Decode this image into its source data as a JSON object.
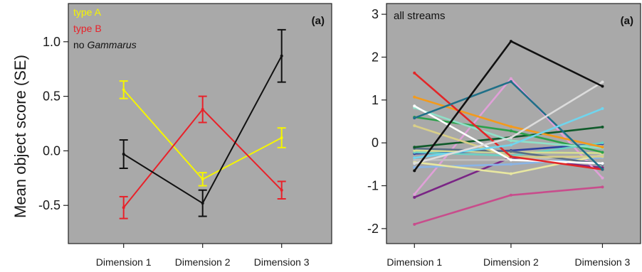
{
  "ylabel": "Mean object score (SE)",
  "chart_data": [
    {
      "type": "line",
      "panel_label": "(a)",
      "categories": [
        "Dimension 1",
        "Dimension 2",
        "Dimension 3"
      ],
      "ylim": [
        -0.85,
        1.35
      ],
      "yticks": [
        {
          "v": 1.0,
          "label": "1.0"
        },
        {
          "v": 0.5,
          "label": "0.5"
        },
        {
          "v": 0.0,
          "label": "0.0"
        },
        {
          "v": -0.5,
          "label": "-0.5"
        }
      ],
      "background": "#a9a9a9",
      "grid": false,
      "legend": [
        {
          "text": "type A",
          "color": "#f5f500"
        },
        {
          "text": "type B",
          "color": "#e8222a"
        },
        {
          "text": "no ",
          "italic": "Gammarus",
          "color": "#111111"
        }
      ],
      "series": [
        {
          "name": "type A",
          "color": "#f5f500",
          "values": [
            0.56,
            -0.26,
            0.12
          ],
          "se": [
            0.08,
            0.06,
            0.09
          ]
        },
        {
          "name": "type B",
          "color": "#e8222a",
          "values": [
            -0.52,
            0.38,
            -0.36
          ],
          "se": [
            0.1,
            0.12,
            0.08
          ]
        },
        {
          "name": "no Gammarus",
          "color": "#111111",
          "values": [
            -0.03,
            -0.48,
            0.87
          ],
          "se": [
            0.13,
            0.12,
            0.24
          ]
        }
      ]
    },
    {
      "type": "line",
      "panel_label": "(a)",
      "annotation": "all streams",
      "categories": [
        "Dimension 1",
        "Dimension 2",
        "Dimension 3"
      ],
      "ylim": [
        -2.35,
        3.25
      ],
      "yticks": [
        {
          "v": 3,
          "label": "3"
        },
        {
          "v": 2,
          "label": "2"
        },
        {
          "v": 1,
          "label": "1"
        },
        {
          "v": 0,
          "label": "0"
        },
        {
          "v": -1,
          "label": "-1"
        },
        {
          "v": -2,
          "label": "-2"
        }
      ],
      "background": "#a9a9a9",
      "grid": false,
      "series": [
        {
          "color": "#c84d8c",
          "values": [
            -1.9,
            -1.22,
            -1.03
          ]
        },
        {
          "color": "#7a2585",
          "values": [
            -1.27,
            -0.34,
            -0.58
          ]
        },
        {
          "color": "#e0a0d8",
          "values": [
            -1.2,
            1.5,
            -0.82
          ]
        },
        {
          "color": "#8ab4e6",
          "values": [
            -0.57,
            -0.5,
            -0.34
          ]
        },
        {
          "color": "#e8e7a0",
          "values": [
            -0.45,
            -0.72,
            -0.28
          ]
        },
        {
          "color": "#c0c0c0",
          "values": [
            -0.4,
            -0.4,
            -0.3
          ]
        },
        {
          "color": "#2c3ea0",
          "values": [
            -0.25,
            -0.18,
            -0.02
          ]
        },
        {
          "color": "#6bd0c4",
          "values": [
            -0.22,
            -0.3,
            0.0
          ]
        },
        {
          "color": "#d6dd92",
          "values": [
            -0.18,
            -0.22,
            -0.24
          ]
        },
        {
          "color": "#5a6e86",
          "values": [
            -0.13,
            -0.2,
            -0.5
          ]
        },
        {
          "color": "#0f5a2a",
          "values": [
            -0.1,
            0.13,
            0.37
          ]
        },
        {
          "color": "#d9cf88",
          "values": [
            0.4,
            -0.33,
            -0.32
          ]
        },
        {
          "color": "#2ca14a",
          "values": [
            0.6,
            0.28,
            -0.22
          ]
        },
        {
          "color": "#8fe0c8",
          "values": [
            0.82,
            0.05,
            -0.12
          ]
        },
        {
          "color": "#ffffff",
          "values": [
            0.86,
            -0.4,
            -0.48
          ]
        },
        {
          "color": "#f39a1c",
          "values": [
            1.07,
            0.38,
            -0.1
          ]
        },
        {
          "color": "#e22628",
          "values": [
            1.63,
            -0.32,
            -0.62
          ]
        },
        {
          "color": "#1f7088",
          "values": [
            0.58,
            1.43,
            -0.62
          ]
        },
        {
          "color": "#6fd5ee",
          "values": [
            -0.35,
            -0.05,
            0.8
          ]
        },
        {
          "color": "#dcdcdc",
          "values": [
            -0.48,
            0.12,
            1.42
          ]
        },
        {
          "color": "#111111",
          "values": [
            -0.65,
            2.37,
            1.32
          ]
        }
      ]
    }
  ]
}
